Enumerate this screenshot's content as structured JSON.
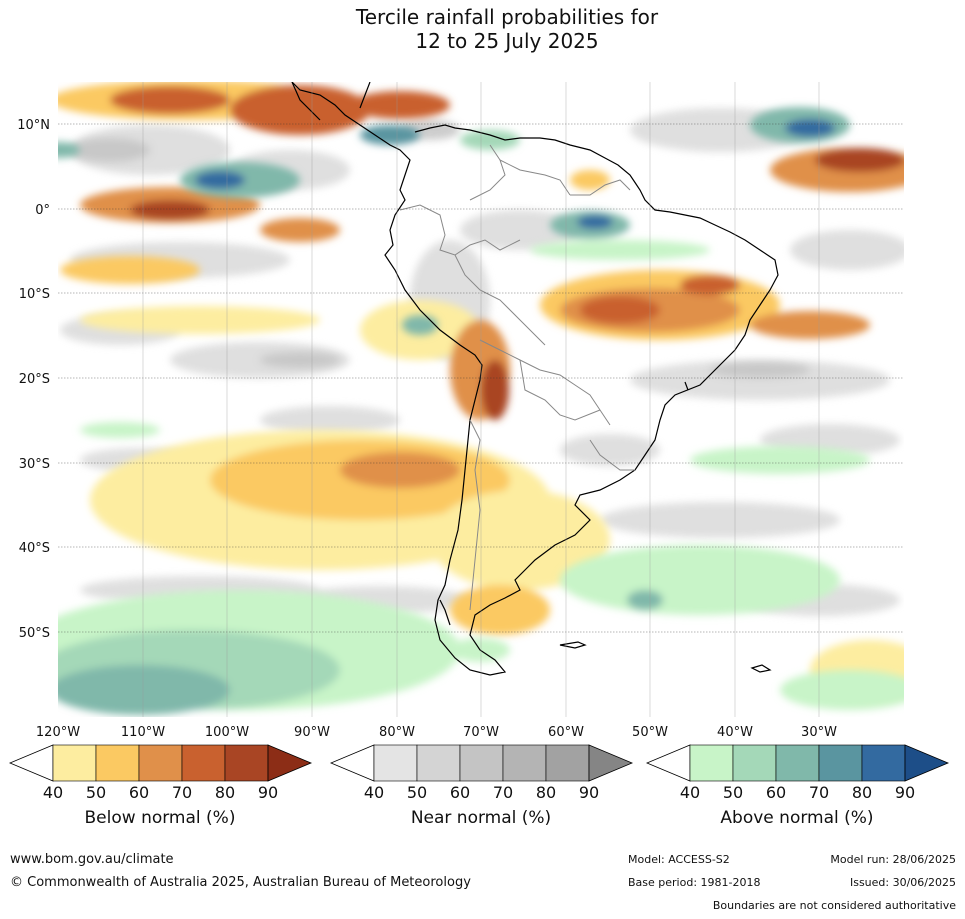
{
  "title_line1": "Tercile rainfall probabilities for",
  "title_line2": "12 to 25 July 2025",
  "lat_labels": [
    "10°N",
    "0°",
    "10°S",
    "20°S",
    "30°S",
    "40°S",
    "50°S"
  ],
  "lon_labels": [
    "120°W",
    "110°W",
    "100°W",
    "90°W",
    "80°W",
    "70°W",
    "60°W",
    "50°W",
    "40°W",
    "30°W"
  ],
  "colorbars": [
    {
      "label": "Below normal (%)",
      "ticks": [
        "40",
        "50",
        "60",
        "70",
        "80",
        "90"
      ],
      "colors": [
        "#fdeda0",
        "#fbc962",
        "#e0904a",
        "#c9612f",
        "#a94524",
        "#8c2d16"
      ]
    },
    {
      "label": "Near normal (%)",
      "ticks": [
        "40",
        "50",
        "60",
        "70",
        "80",
        "90"
      ],
      "colors": [
        "#e4e4e4",
        "#d4d4d4",
        "#c4c4c4",
        "#b4b4b4",
        "#a2a2a2",
        "#858585"
      ]
    },
    {
      "label": "Above normal (%)",
      "ticks": [
        "40",
        "50",
        "60",
        "70",
        "80",
        "90"
      ],
      "colors": [
        "#c8f4c8",
        "#a4d8b8",
        "#80b8aa",
        "#5a95a0",
        "#336aa0",
        "#1d4e88"
      ]
    }
  ],
  "footer": {
    "website": "www.bom.gov.au/climate",
    "copyright": "© Commonwealth of Australia 2025, Australian Bureau of Meteorology",
    "model": "Model: ACCESS-S2",
    "base_period": "Base period: 1981-2018",
    "model_run": "Model run: 28/06/2025",
    "issued": "Issued: 30/06/2025",
    "disclaimer": "Boundaries are not considered authoritative"
  }
}
